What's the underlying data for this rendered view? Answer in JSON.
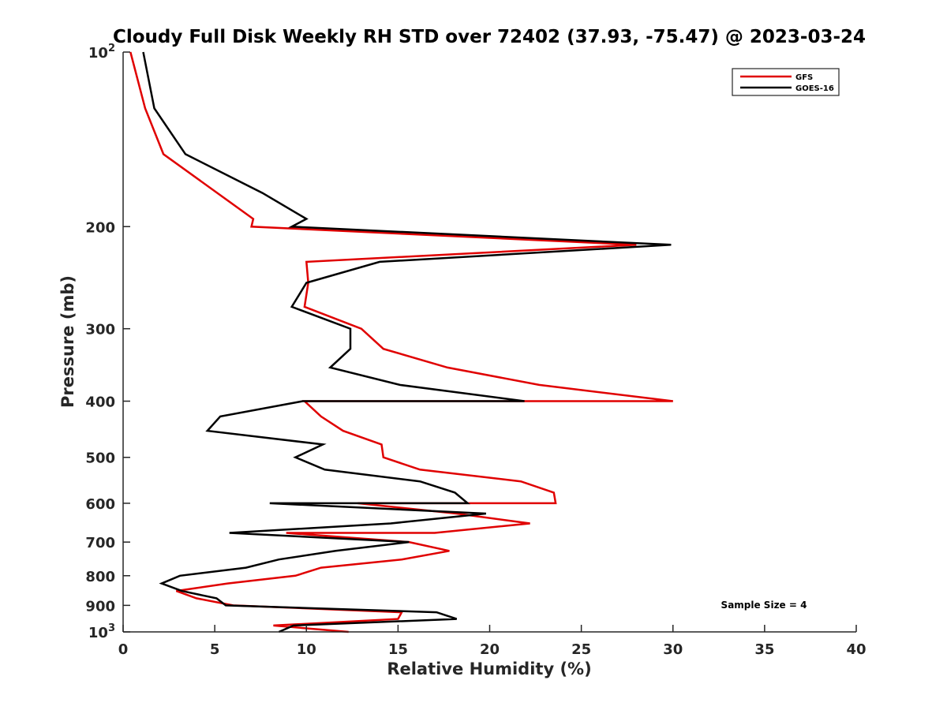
{
  "chart_data": {
    "type": "line",
    "title": "Cloudy Full Disk Weekly RH STD over 72402 (37.93, -75.47) @ 2023-03-24",
    "xlabel": "Relative Humidity (%)",
    "ylabel": "Pressure (mb)",
    "xlim": [
      0,
      40
    ],
    "ylim": [
      100,
      1000
    ],
    "y_scale": "log",
    "y_reversed": true,
    "grid": false,
    "legend_position": "top-right",
    "x_ticks": [
      "0",
      "5",
      "10",
      "15",
      "20",
      "25",
      "30",
      "35",
      "40"
    ],
    "y_ticks": [
      {
        "value": 200,
        "label": "200"
      },
      {
        "value": 300,
        "label": "300"
      },
      {
        "value": 400,
        "label": "400"
      },
      {
        "value": 500,
        "label": "500"
      },
      {
        "value": 600,
        "label": "600"
      },
      {
        "value": 700,
        "label": "700"
      },
      {
        "value": 800,
        "label": "800"
      },
      {
        "value": 900,
        "label": "900"
      }
    ],
    "y_end_ticks": [
      {
        "value": 100,
        "base": "10",
        "exp": "2"
      },
      {
        "value": 1000,
        "base": "10",
        "exp": "3"
      }
    ],
    "annotation": "Sample Size = 4",
    "series": [
      {
        "name": "GFS",
        "color": "#e00000",
        "points": [
          [
            0.4,
            100
          ],
          [
            1.2,
            125
          ],
          [
            2.2,
            150
          ],
          [
            7.1,
            194
          ],
          [
            7.0,
            200
          ],
          [
            28.0,
            215
          ],
          [
            10.0,
            230
          ],
          [
            10.1,
            250
          ],
          [
            9.9,
            275
          ],
          [
            13.0,
            300
          ],
          [
            14.2,
            325
          ],
          [
            17.7,
            350
          ],
          [
            22.7,
            375
          ],
          [
            30.0,
            400
          ],
          [
            9.9,
            400
          ],
          [
            10.8,
            425
          ],
          [
            12.0,
            450
          ],
          [
            14.1,
            475
          ],
          [
            14.2,
            500
          ],
          [
            16.2,
            525
          ],
          [
            21.7,
            550
          ],
          [
            23.5,
            575
          ],
          [
            23.6,
            600
          ],
          [
            12.8,
            600
          ],
          [
            18.2,
            625
          ],
          [
            22.2,
            650
          ],
          [
            17.0,
            675
          ],
          [
            8.9,
            675
          ],
          [
            15.6,
            700
          ],
          [
            17.8,
            725
          ],
          [
            15.2,
            750
          ],
          [
            10.8,
            775
          ],
          [
            9.4,
            800
          ],
          [
            5.7,
            825
          ],
          [
            2.9,
            850
          ],
          [
            4.0,
            875
          ],
          [
            6.0,
            900
          ],
          [
            15.2,
            925
          ],
          [
            15.0,
            950
          ],
          [
            8.2,
            975
          ],
          [
            12.3,
            1000
          ]
        ]
      },
      {
        "name": "GOES-16",
        "color": "#000000",
        "points": [
          [
            1.1,
            100
          ],
          [
            1.7,
            125
          ],
          [
            3.4,
            150
          ],
          [
            7.6,
            175
          ],
          [
            10.0,
            194
          ],
          [
            9.2,
            200
          ],
          [
            29.9,
            215
          ],
          [
            14.0,
            230
          ],
          [
            10.0,
            250
          ],
          [
            9.2,
            275
          ],
          [
            12.4,
            300
          ],
          [
            12.4,
            325
          ],
          [
            11.3,
            350
          ],
          [
            15.1,
            375
          ],
          [
            21.9,
            400
          ],
          [
            9.8,
            400
          ],
          [
            5.3,
            425
          ],
          [
            4.6,
            450
          ],
          [
            10.9,
            475
          ],
          [
            9.4,
            500
          ],
          [
            11.0,
            525
          ],
          [
            16.2,
            550
          ],
          [
            18.1,
            575
          ],
          [
            18.8,
            600
          ],
          [
            8.0,
            600
          ],
          [
            19.8,
            625
          ],
          [
            14.6,
            650
          ],
          [
            5.8,
            675
          ],
          [
            15.6,
            700
          ],
          [
            11.6,
            725
          ],
          [
            8.5,
            750
          ],
          [
            6.7,
            775
          ],
          [
            3.1,
            800
          ],
          [
            2.1,
            825
          ],
          [
            3.2,
            850
          ],
          [
            5.1,
            875
          ],
          [
            5.6,
            900
          ],
          [
            17.1,
            925
          ],
          [
            18.2,
            950
          ],
          [
            9.3,
            975
          ],
          [
            8.5,
            1000
          ]
        ]
      }
    ]
  }
}
